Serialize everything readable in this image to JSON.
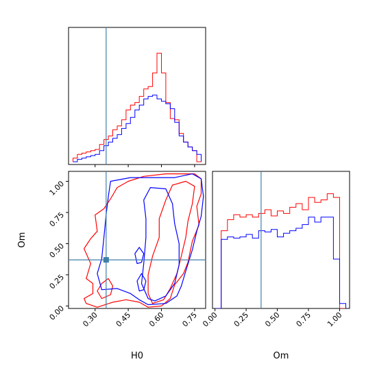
{
  "chart_data": {
    "type": "corner",
    "parameters": [
      "H0",
      "Om"
    ],
    "truth": {
      "H0": 0.35,
      "Om": 0.37
    },
    "colors": {
      "series_a": "#ff0000",
      "series_b": "#0000ff",
      "truth": "#3f7fa8"
    },
    "xlabel_h0": "H0",
    "xlabel_om": "Om",
    "ylabel_om": "Om",
    "h0_ticks": [
      "0.30",
      "0.45",
      "0.60",
      "0.75"
    ],
    "om_ticks": [
      "0.00",
      "0.25",
      "0.50",
      "0.75",
      "1.00"
    ],
    "h0_range": [
      0.18,
      0.8
    ],
    "om_range": [
      -0.02,
      1.08
    ],
    "hist_h0": {
      "edges": [
        0.2,
        0.22,
        0.24,
        0.26,
        0.28,
        0.3,
        0.32,
        0.34,
        0.36,
        0.38,
        0.4,
        0.42,
        0.44,
        0.46,
        0.48,
        0.5,
        0.52,
        0.54,
        0.56,
        0.58,
        0.6,
        0.62,
        0.64,
        0.66,
        0.68,
        0.7,
        0.72,
        0.74,
        0.76,
        0.78
      ],
      "series": [
        {
          "values": [
            0.03,
            0.06,
            0.07,
            0.08,
            0.09,
            0.1,
            0.14,
            0.18,
            0.21,
            0.26,
            0.29,
            0.34,
            0.42,
            0.46,
            0.48,
            0.53,
            0.59,
            0.61,
            0.72,
            0.88,
            0.72,
            0.48,
            0.35,
            0.34,
            0.23,
            0.16,
            0.12,
            0.09,
            0.0
          ]
        },
        {
          "values": [
            0.0,
            0.02,
            0.03,
            0.04,
            0.05,
            0.06,
            0.09,
            0.13,
            0.16,
            0.19,
            0.22,
            0.27,
            0.31,
            0.36,
            0.42,
            0.46,
            0.51,
            0.53,
            0.54,
            0.51,
            0.49,
            0.47,
            0.43,
            0.32,
            0.21,
            0.16,
            0.12,
            0.09,
            0.06
          ]
        }
      ]
    },
    "hist_om": {
      "edges": [
        0.0,
        0.05,
        0.1,
        0.15,
        0.2,
        0.25,
        0.3,
        0.35,
        0.4,
        0.45,
        0.5,
        0.55,
        0.6,
        0.65,
        0.7,
        0.75,
        0.8,
        0.85,
        0.9,
        0.95,
        1.0,
        1.05
      ],
      "series": [
        {
          "values": [
            0.0,
            0.63,
            0.72,
            0.76,
            0.74,
            0.76,
            0.74,
            0.77,
            0.8,
            0.75,
            0.79,
            0.77,
            0.82,
            0.85,
            0.8,
            0.9,
            0.86,
            0.88,
            0.93,
            0.9,
            0.0
          ]
        },
        {
          "values": [
            0.0,
            0.56,
            0.58,
            0.57,
            0.58,
            0.6,
            0.57,
            0.63,
            0.62,
            0.64,
            0.58,
            0.61,
            0.63,
            0.65,
            0.68,
            0.74,
            0.7,
            0.74,
            0.74,
            0.4,
            0.04
          ]
        }
      ]
    },
    "contours": {
      "series_a": [
        [
          [
            0.31,
            -0.01
          ],
          [
            0.26,
            0.02
          ],
          [
            0.25,
            0.06
          ],
          [
            0.29,
            0.1
          ],
          [
            0.29,
            0.18
          ],
          [
            0.26,
            0.22
          ],
          [
            0.28,
            0.34
          ],
          [
            0.25,
            0.46
          ],
          [
            0.28,
            0.54
          ],
          [
            0.31,
            0.6
          ],
          [
            0.3,
            0.73
          ],
          [
            0.34,
            0.78
          ],
          [
            0.37,
            0.86
          ],
          [
            0.4,
            0.95
          ],
          [
            0.45,
            1.0
          ],
          [
            0.52,
            1.04
          ],
          [
            0.62,
            1.06
          ],
          [
            0.75,
            1.06
          ],
          [
            0.78,
            1.02
          ],
          [
            0.78,
            0.9
          ],
          [
            0.76,
            0.8
          ],
          [
            0.77,
            0.65
          ],
          [
            0.74,
            0.52
          ],
          [
            0.72,
            0.35
          ],
          [
            0.7,
            0.26
          ],
          [
            0.66,
            0.17
          ],
          [
            0.64,
            0.06
          ],
          [
            0.6,
            0.0
          ],
          [
            0.54,
            -0.01
          ],
          [
            0.5,
            0.03
          ],
          [
            0.44,
            0.05
          ],
          [
            0.38,
            0.03
          ],
          [
            0.31,
            -0.01
          ]
        ],
        [
          [
            0.56,
            0.02
          ],
          [
            0.54,
            0.1
          ],
          [
            0.54,
            0.25
          ],
          [
            0.56,
            0.4
          ],
          [
            0.59,
            0.55
          ],
          [
            0.59,
            0.7
          ],
          [
            0.62,
            0.85
          ],
          [
            0.65,
            0.97
          ],
          [
            0.71,
            1.0
          ],
          [
            0.75,
            0.96
          ],
          [
            0.74,
            0.82
          ],
          [
            0.72,
            0.68
          ],
          [
            0.71,
            0.55
          ],
          [
            0.69,
            0.4
          ],
          [
            0.67,
            0.26
          ],
          [
            0.64,
            0.14
          ],
          [
            0.61,
            0.05
          ],
          [
            0.56,
            0.02
          ]
        ],
        [
          [
            0.33,
            0.06
          ],
          [
            0.31,
            0.12
          ],
          [
            0.33,
            0.18
          ],
          [
            0.36,
            0.22
          ],
          [
            0.38,
            0.16
          ],
          [
            0.37,
            0.09
          ],
          [
            0.33,
            0.06
          ]
        ]
      ],
      "series_b": [
        [
          [
            0.33,
            0.13
          ],
          [
            0.31,
            0.26
          ],
          [
            0.33,
            0.38
          ],
          [
            0.34,
            0.55
          ],
          [
            0.35,
            0.73
          ],
          [
            0.36,
            0.88
          ],
          [
            0.37,
            1.0
          ],
          [
            0.46,
            1.03
          ],
          [
            0.56,
            1.03
          ],
          [
            0.66,
            1.03
          ],
          [
            0.74,
            1.06
          ],
          [
            0.78,
            1.02
          ],
          [
            0.79,
            0.88
          ],
          [
            0.78,
            0.72
          ],
          [
            0.76,
            0.6
          ],
          [
            0.74,
            0.45
          ],
          [
            0.71,
            0.28
          ],
          [
            0.69,
            0.16
          ],
          [
            0.67,
            0.08
          ],
          [
            0.62,
            0.02
          ],
          [
            0.54,
            0.01
          ],
          [
            0.5,
            0.05
          ],
          [
            0.46,
            0.1
          ],
          [
            0.4,
            0.14
          ],
          [
            0.33,
            0.13
          ]
        ],
        [
          [
            0.54,
            0.06
          ],
          [
            0.51,
            0.18
          ],
          [
            0.52,
            0.34
          ],
          [
            0.53,
            0.55
          ],
          [
            0.53,
            0.7
          ],
          [
            0.52,
            0.85
          ],
          [
            0.55,
            0.95
          ],
          [
            0.62,
            0.94
          ],
          [
            0.65,
            0.82
          ],
          [
            0.66,
            0.66
          ],
          [
            0.68,
            0.5
          ],
          [
            0.68,
            0.33
          ],
          [
            0.66,
            0.18
          ],
          [
            0.62,
            0.08
          ],
          [
            0.57,
            0.04
          ],
          [
            0.54,
            0.06
          ]
        ],
        [
          [
            0.49,
            0.34
          ],
          [
            0.48,
            0.42
          ],
          [
            0.5,
            0.47
          ],
          [
            0.52,
            0.42
          ],
          [
            0.51,
            0.35
          ],
          [
            0.49,
            0.34
          ]
        ],
        [
          [
            0.5,
            0.12
          ],
          [
            0.49,
            0.2
          ],
          [
            0.51,
            0.26
          ],
          [
            0.53,
            0.2
          ],
          [
            0.52,
            0.13
          ],
          [
            0.5,
            0.12
          ]
        ]
      ]
    }
  }
}
